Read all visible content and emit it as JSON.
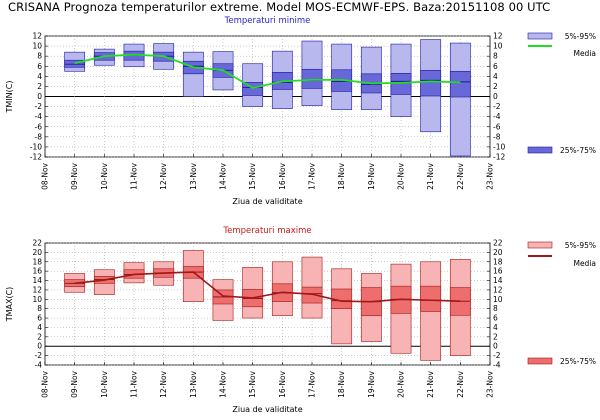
{
  "page": {
    "title": "CRISANA  Prognoza temperaturilor extreme.  Model MOS-ECMWF-EPS. Baza:20151108 00 UTC"
  },
  "chart_data": [
    {
      "type": "box",
      "title": "Temperaturi minime",
      "xlabel": "Ziua de validitate",
      "ylabel": "TMIN(C)",
      "ylim": [
        -12,
        12
      ],
      "yticks": [
        -12,
        -10,
        -8,
        -6,
        -4,
        -2,
        0,
        2,
        4,
        6,
        8,
        10,
        12
      ],
      "x_tick_labels": [
        "08-Nov",
        "09-Nov",
        "10-Nov",
        "11-Nov",
        "12-Nov",
        "13-Nov",
        "14-Nov",
        "15-Nov",
        "16-Nov",
        "17-Nov",
        "18-Nov",
        "19-Nov",
        "20-Nov",
        "21-Nov",
        "22-Nov",
        "23-Nov"
      ],
      "colors": {
        "box_light": "#b8b8ee",
        "box_dark": "#6868d8",
        "line": "#22dd22",
        "edge": "#1a1aa0"
      },
      "legend": [
        {
          "label": "5%-95%",
          "kind": "light-box"
        },
        {
          "label": "Media",
          "kind": "line"
        },
        {
          "label": "25%-75%",
          "kind": "dark-box"
        }
      ],
      "series": {
        "x": [
          9,
          10,
          11,
          12,
          13,
          14,
          15,
          16,
          17,
          18,
          19,
          20,
          21,
          22
        ],
        "p5": [
          5.0,
          6.2,
          5.9,
          5.4,
          0.0,
          1.3,
          -2.0,
          -2.4,
          -1.8,
          -2.6,
          -2.6,
          -4.0,
          -7.0,
          -11.8
        ],
        "p25": [
          5.8,
          7.2,
          7.2,
          7.0,
          4.5,
          3.8,
          0.2,
          1.4,
          1.6,
          1.0,
          0.7,
          0.4,
          0.1,
          -0.1
        ],
        "median": [
          6.4,
          8.0,
          8.2,
          8.0,
          6.0,
          5.2,
          1.8,
          2.8,
          3.2,
          3.0,
          2.4,
          3.0,
          3.2,
          2.9
        ],
        "p75": [
          7.2,
          8.7,
          9.0,
          8.8,
          7.0,
          6.5,
          2.8,
          4.8,
          5.4,
          5.3,
          4.5,
          4.6,
          5.2,
          5.0
        ],
        "p95": [
          8.8,
          9.4,
          10.4,
          10.5,
          8.8,
          8.9,
          6.5,
          9.0,
          11.0,
          10.4,
          9.8,
          10.4,
          11.3,
          10.6
        ],
        "mean": [
          6.6,
          8.0,
          8.3,
          8.0,
          5.8,
          5.2,
          1.7,
          3.0,
          3.3,
          3.3,
          2.6,
          2.7,
          3.0,
          2.8
        ]
      }
    },
    {
      "type": "box",
      "title": "Temperaturi maxime",
      "xlabel": "Ziua de validitate",
      "ylabel": "TMAX(C)",
      "ylim": [
        -4,
        22
      ],
      "yticks": [
        -4,
        -2,
        0,
        2,
        4,
        6,
        8,
        10,
        12,
        14,
        16,
        18,
        20,
        22
      ],
      "x_tick_labels": [
        "08-Nov",
        "09-Nov",
        "10-Nov",
        "11-Nov",
        "12-Nov",
        "13-Nov",
        "14-Nov",
        "15-Nov",
        "16-Nov",
        "17-Nov",
        "18-Nov",
        "19-Nov",
        "20-Nov",
        "21-Nov",
        "22-Nov",
        "23-Nov"
      ],
      "colors": {
        "box_light": "#f8b4b4",
        "box_dark": "#ee6e6e",
        "line": "#a01818",
        "edge": "#a01818"
      },
      "legend": [
        {
          "label": "5%-95%",
          "kind": "light-box"
        },
        {
          "label": "Media",
          "kind": "line"
        },
        {
          "label": "25%-75%",
          "kind": "dark-box"
        }
      ],
      "series": {
        "x": [
          9,
          10,
          11,
          12,
          13,
          14,
          15,
          16,
          17,
          18,
          19,
          20,
          21,
          22
        ],
        "p5": [
          11.5,
          11.0,
          13.5,
          13.0,
          9.5,
          5.5,
          6.0,
          6.5,
          6.0,
          0.5,
          1.0,
          -1.5,
          -3.0,
          -2.0
        ],
        "p25": [
          12.7,
          13.4,
          14.5,
          14.7,
          14.5,
          9.0,
          8.4,
          9.5,
          9.2,
          8.0,
          6.5,
          7.0,
          7.4,
          6.6
        ],
        "median": [
          13.4,
          14.2,
          15.3,
          15.6,
          15.8,
          10.5,
          10.2,
          11.4,
          11.2,
          9.7,
          9.5,
          10.0,
          9.8,
          9.6
        ],
        "p75": [
          14.2,
          14.9,
          16.3,
          16.5,
          17.0,
          12.0,
          12.1,
          13.3,
          12.6,
          12.2,
          12.5,
          12.8,
          12.8,
          12.5
        ],
        "p95": [
          15.5,
          16.3,
          17.8,
          18.0,
          20.4,
          14.2,
          16.8,
          18.0,
          19.0,
          16.5,
          15.5,
          17.5,
          18.0,
          18.5
        ],
        "mean": [
          13.4,
          14.1,
          15.3,
          15.6,
          15.8,
          10.7,
          10.3,
          11.5,
          11.1,
          9.6,
          9.5,
          10.0,
          9.8,
          9.6
        ]
      }
    }
  ]
}
